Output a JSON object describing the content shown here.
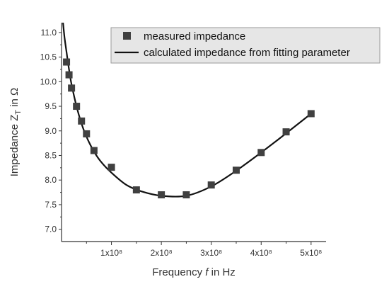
{
  "chart_data": {
    "type": "scatter",
    "xlabel": "Frequency f in Hz",
    "ylabel": "Impedance Z_T in Ω",
    "xlim": [
      0,
      530000000
    ],
    "ylim": [
      6.75,
      11.2
    ],
    "x_ticks": [
      100000000,
      200000000,
      300000000,
      400000000,
      500000000
    ],
    "x_tick_labels": [
      "1x10⁸",
      "2x10⁸",
      "3x10⁸",
      "4x10⁸",
      "5x10⁸"
    ],
    "y_ticks": [
      7.0,
      7.5,
      8.0,
      8.5,
      9.0,
      9.5,
      10.0,
      10.5,
      11.0
    ],
    "y_tick_labels": [
      "7.0",
      "7.5",
      "8.0",
      "8.5",
      "9.0",
      "9.5",
      "10.0",
      "10.5",
      "11.0"
    ],
    "legend_position": "top-right",
    "series": [
      {
        "name": "measured impedance",
        "kind": "scatter",
        "marker": "square",
        "color": "#404040",
        "points": [
          [
            10000000,
            10.4
          ],
          [
            15000000,
            10.14
          ],
          [
            20000000,
            9.87
          ],
          [
            30000000,
            9.5
          ],
          [
            40000000,
            9.2
          ],
          [
            50000000,
            8.94
          ],
          [
            65000000,
            8.6
          ],
          [
            100000000,
            8.26
          ],
          [
            150000000,
            7.8
          ],
          [
            200000000,
            7.7
          ],
          [
            250000000,
            7.7
          ],
          [
            300000000,
            7.9
          ],
          [
            350000000,
            8.2
          ],
          [
            400000000,
            8.56
          ],
          [
            450000000,
            8.98
          ],
          [
            500000000,
            9.35
          ]
        ]
      },
      {
        "name": "calculated impedance from fitting parameter",
        "kind": "line",
        "color": "#111111",
        "points": [
          [
            3000000,
            11.2
          ],
          [
            6000000,
            10.9
          ],
          [
            10000000,
            10.6
          ],
          [
            15000000,
            10.25
          ],
          [
            20000000,
            9.95
          ],
          [
            30000000,
            9.5
          ],
          [
            40000000,
            9.15
          ],
          [
            50000000,
            8.88
          ],
          [
            65000000,
            8.58
          ],
          [
            80000000,
            8.36
          ],
          [
            100000000,
            8.15
          ],
          [
            130000000,
            7.9
          ],
          [
            160000000,
            7.77
          ],
          [
            200000000,
            7.68
          ],
          [
            250000000,
            7.68
          ],
          [
            300000000,
            7.87
          ],
          [
            350000000,
            8.19
          ],
          [
            400000000,
            8.56
          ],
          [
            450000000,
            8.95
          ],
          [
            500000000,
            9.35
          ]
        ]
      }
    ]
  }
}
